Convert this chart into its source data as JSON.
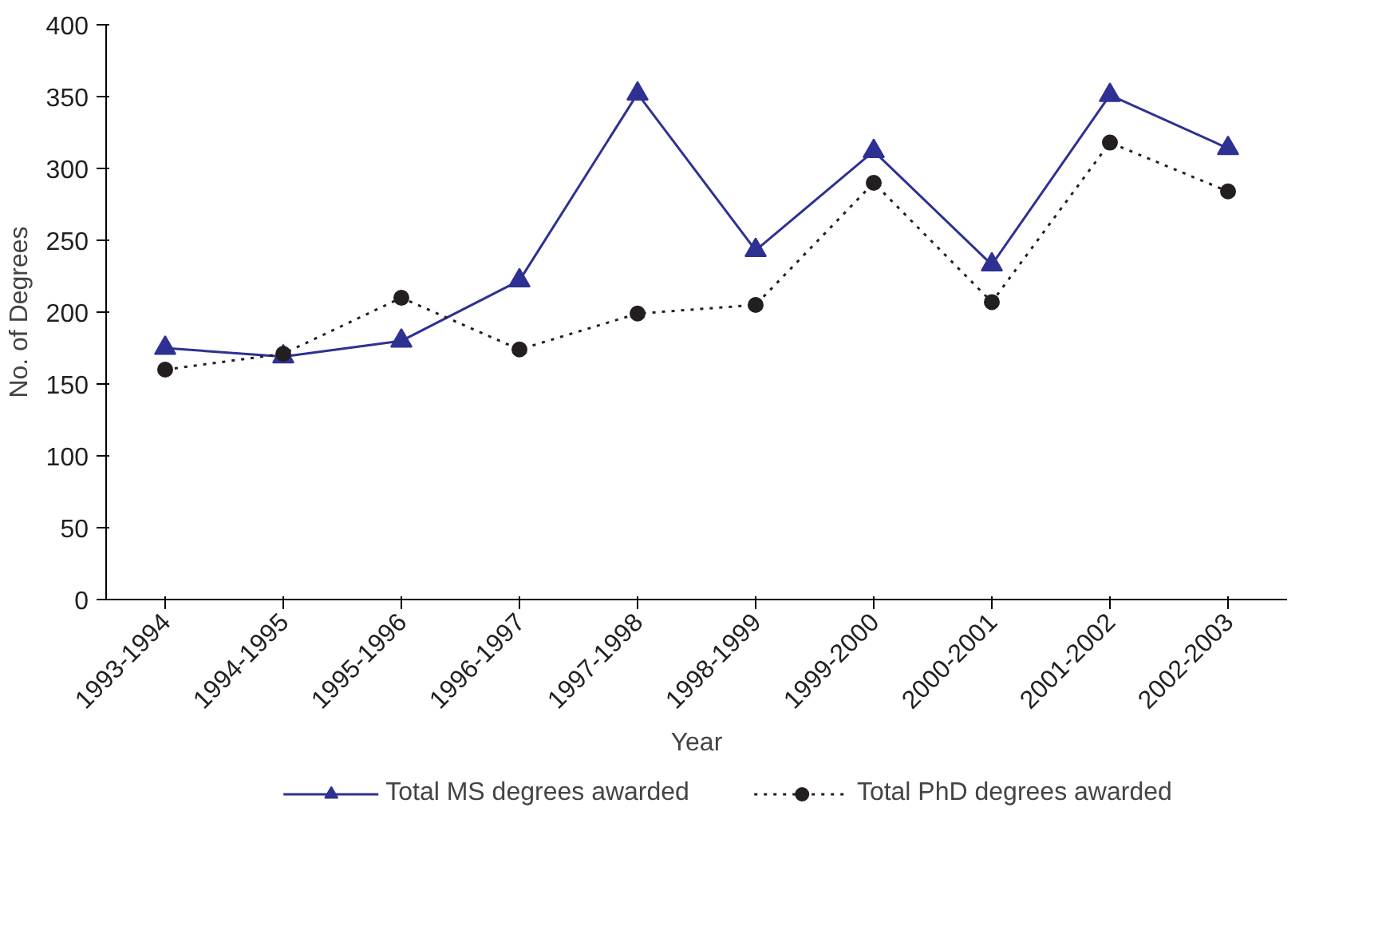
{
  "chart_data": {
    "type": "line",
    "xlabel": "Year",
    "ylabel": "No. of Degrees",
    "categories": [
      "1993-1994",
      "1994-1995",
      "1995-1996",
      "1996-1997",
      "1997-1998",
      "1998-1999",
      "1999-2000",
      "2000-2001",
      "2001-2002",
      "2002-2003"
    ],
    "series": [
      {
        "name": "Total MS degrees awarded",
        "color": "#2e3192",
        "marker": "triangle",
        "line_style": "solid",
        "values": [
          175,
          169,
          180,
          222,
          352,
          243,
          312,
          233,
          351,
          314
        ]
      },
      {
        "name": "Total PhD degrees awarded",
        "color": "#231f20",
        "marker": "circle",
        "line_style": "dotted",
        "values": [
          160,
          171,
          210,
          174,
          199,
          205,
          290,
          207,
          318,
          284
        ]
      }
    ],
    "ylim": [
      0,
      400
    ],
    "yticks": [
      0,
      50,
      100,
      150,
      200,
      250,
      300,
      350,
      400
    ],
    "grid": false,
    "legend": "bottom"
  }
}
